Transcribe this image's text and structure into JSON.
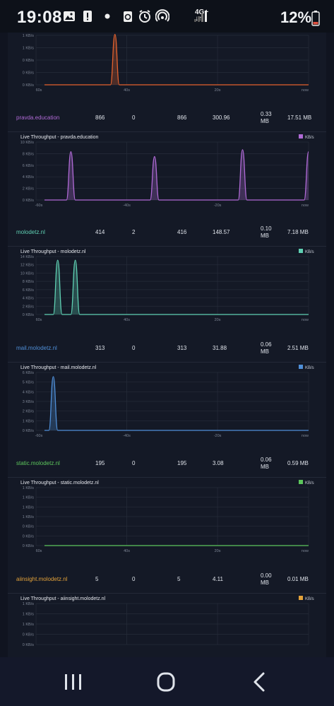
{
  "status_bar": {
    "time": "19:08",
    "network": "4G+",
    "battery": "12%",
    "icons": [
      "image-icon",
      "alert-icon",
      "dot-icon",
      "recycle-icon",
      "alarm-icon",
      "hotspot-icon",
      "network-icon",
      "signal-icon",
      "battery-icon"
    ]
  },
  "tick_labels": {
    "x_60": "60s",
    "x_40": "40s",
    "x_20": "20s",
    "x_now": "now",
    "x_neg60": "-60s",
    "x_neg40": "-40s",
    "x_neg20": "-20s",
    "kb0": "0 KB/s",
    "kb1": "1 KB/s",
    "kb2": "2 KB/s",
    "kb3": "3 KB/s",
    "kb4": "4 KB/s",
    "kb5": "5 KB/s",
    "kb6": "6 KB/s",
    "kb8": "8 KB/s",
    "kb10": "10 KB/s",
    "kb12": "12 KB/s",
    "kb14": "14 KB/s",
    "unit": "KB/s"
  },
  "rows": [
    {
      "host": "pravda.education",
      "c1": "866",
      "c2": "0",
      "c3": "866",
      "c4": "300.96",
      "mb_a": "0.33",
      "mb_b": "MB",
      "total": "17.51 MB",
      "color": "#b06ad6"
    },
    {
      "host": "molodetz.nl",
      "c1": "414",
      "c2": "2",
      "c3": "416",
      "c4": "148.57",
      "mb_a": "0.10",
      "mb_b": "MB",
      "total": "7.18 MB",
      "color": "#5fd0b3"
    },
    {
      "host": "mail.molodetz.nl",
      "c1": "313",
      "c2": "0",
      "c3": "313",
      "c4": "31.88",
      "mb_a": "0.06",
      "mb_b": "MB",
      "total": "2.51 MB",
      "color": "#4f8fd8"
    },
    {
      "host": "static.molodetz.nl",
      "c1": "195",
      "c2": "0",
      "c3": "195",
      "c4": "3.08",
      "mb_a": "0.06",
      "mb_b": "MB",
      "total": "0.59 MB",
      "color": "#5cc65c"
    },
    {
      "host": "aiinsight.molodetz.nl",
      "c1": "5",
      "c2": "0",
      "c3": "5",
      "c4": "4.11",
      "mb_a": "0.00",
      "mb_b": "MB",
      "total": "0.01 MB",
      "color": "#e3a23a"
    }
  ],
  "chart_data": [
    {
      "type": "line",
      "title": "",
      "series": [
        {
          "values": [
            0,
            0,
            0,
            0,
            0,
            0,
            0,
            0,
            0,
            0,
            0,
            0,
            0,
            0,
            0,
            0,
            1.6,
            0,
            0,
            0,
            0,
            0,
            0,
            0,
            0,
            0,
            0,
            0,
            0,
            0,
            0,
            0,
            0,
            0,
            0,
            0,
            0,
            0,
            0,
            0,
            0,
            0,
            0,
            0,
            0,
            0,
            0,
            0,
            0,
            0,
            0,
            0,
            0,
            0,
            0,
            0,
            0,
            0,
            0,
            0,
            0
          ],
          "color": "#e4622e"
        }
      ],
      "ylim": [
        0,
        1.5
      ],
      "ytick_keys": [
        "kb0",
        "kb0",
        "kb0",
        "kb1",
        "kb1"
      ],
      "xtick_keys": [
        "x_60",
        "x_40",
        "x_20",
        "x_now"
      ]
    },
    {
      "type": "line",
      "title": "Live Throughput - pravda.education",
      "series": [
        {
          "values": [
            0,
            0,
            0,
            0,
            0,
            0,
            10,
            0,
            0,
            0,
            0,
            0,
            0,
            0,
            0,
            0,
            0,
            0,
            0,
            0,
            0,
            0,
            0,
            0,
            0,
            9,
            0,
            0,
            0,
            0,
            0,
            0,
            0,
            0,
            0,
            0,
            0,
            0,
            0,
            0,
            0,
            0,
            0,
            0,
            0,
            10.4,
            0,
            0,
            0,
            0,
            0,
            0,
            0,
            0,
            0,
            0,
            0,
            0,
            0,
            0,
            10
          ],
          "color": "#b06ad6",
          "name": "KB/s"
        }
      ],
      "ylim": [
        0,
        12
      ],
      "ytick_keys": [
        "kb0",
        "kb2",
        "kb4",
        "kb6",
        "kb8",
        "kb10"
      ],
      "xtick_keys": [
        "x_neg60",
        "x_neg40",
        "x_neg20",
        "x_now"
      ]
    },
    {
      "type": "line",
      "title": "Live Throughput - molodetz.nl",
      "series": [
        {
          "values": [
            0,
            0,
            0,
            15,
            0,
            0,
            0,
            15,
            0,
            0,
            0,
            0,
            0,
            0,
            0,
            0,
            0,
            0,
            0,
            0,
            0,
            0,
            0,
            0,
            0,
            0,
            0,
            0,
            0,
            0,
            0,
            0,
            0,
            0,
            0,
            0,
            0,
            0,
            0,
            0,
            0,
            0,
            0,
            0,
            0,
            0,
            0,
            0,
            0,
            0,
            0,
            0,
            0,
            0,
            0,
            0,
            0,
            0,
            0,
            0,
            0
          ],
          "color": "#5fd0b3",
          "name": "KB/s"
        }
      ],
      "ylim": [
        0,
        16
      ],
      "ytick_keys": [
        "kb0",
        "kb2",
        "kb4",
        "kb6",
        "kb8",
        "kb10",
        "kb12",
        "kb14"
      ],
      "xtick_keys": [
        "x_60",
        "x_40",
        "x_20",
        "x_now"
      ]
    },
    {
      "type": "line",
      "title": "Live Throughput - mail.molodetz.nl",
      "series": [
        {
          "values": [
            0,
            0,
            6.5,
            0,
            0,
            0,
            0,
            0,
            0,
            0,
            0,
            0,
            0,
            0,
            0,
            0,
            0,
            0,
            0,
            0,
            0,
            0,
            0,
            0,
            0,
            0,
            0,
            0,
            0,
            0,
            0,
            0,
            0,
            0,
            0,
            0,
            0,
            0,
            0,
            0,
            0,
            0,
            0,
            0,
            0,
            0,
            0,
            0,
            0,
            0,
            0,
            0,
            0,
            0,
            0,
            0,
            0,
            0,
            0,
            0,
            0
          ],
          "color": "#4f8fd8",
          "name": "KB/s"
        }
      ],
      "ylim": [
        0,
        7
      ],
      "ytick_keys": [
        "kb0",
        "kb1",
        "kb2",
        "kb3",
        "kb4",
        "kb5",
        "kb6"
      ],
      "xtick_keys": [
        "x_neg60",
        "x_neg40",
        "x_neg20",
        "x_now"
      ]
    },
    {
      "type": "line",
      "title": "Live Throughput - static.molodetz.nl",
      "series": [
        {
          "values": [
            0,
            0,
            0,
            0,
            0,
            0,
            0,
            0,
            0,
            0,
            0,
            0,
            0,
            0,
            0,
            0,
            0,
            0,
            0,
            0,
            0,
            0,
            0,
            0,
            0,
            0,
            0,
            0,
            0,
            0,
            0,
            0,
            0,
            0,
            0,
            0,
            0,
            0,
            0,
            0,
            0,
            0,
            0,
            0,
            0,
            0,
            0,
            0,
            0,
            0,
            0,
            0,
            0,
            0,
            0,
            0,
            0,
            0,
            0,
            0,
            0
          ],
          "color": "#5cc65c",
          "name": "KB/s"
        }
      ],
      "ylim": [
        0,
        1
      ],
      "ytick_keys": [
        "kb0",
        "kb0",
        "kb0",
        "kb1",
        "kb1",
        "kb1",
        "kb1"
      ],
      "xtick_keys": [
        "x_60",
        "x_40",
        "x_20",
        "x_now"
      ]
    },
    {
      "type": "line",
      "title": "Live Throughput - aiinsight.molodetz.nl",
      "series": [
        {
          "values": [],
          "color": "#e3a23a",
          "name": "KB/s"
        }
      ],
      "ylim": [
        0,
        1
      ],
      "ytick_keys": [
        "kb0",
        "kb0",
        "kb1",
        "kb1",
        "kb1"
      ],
      "xtick_keys": []
    }
  ],
  "nav": {
    "icons": [
      "recents-icon",
      "home-icon",
      "back-icon"
    ]
  }
}
